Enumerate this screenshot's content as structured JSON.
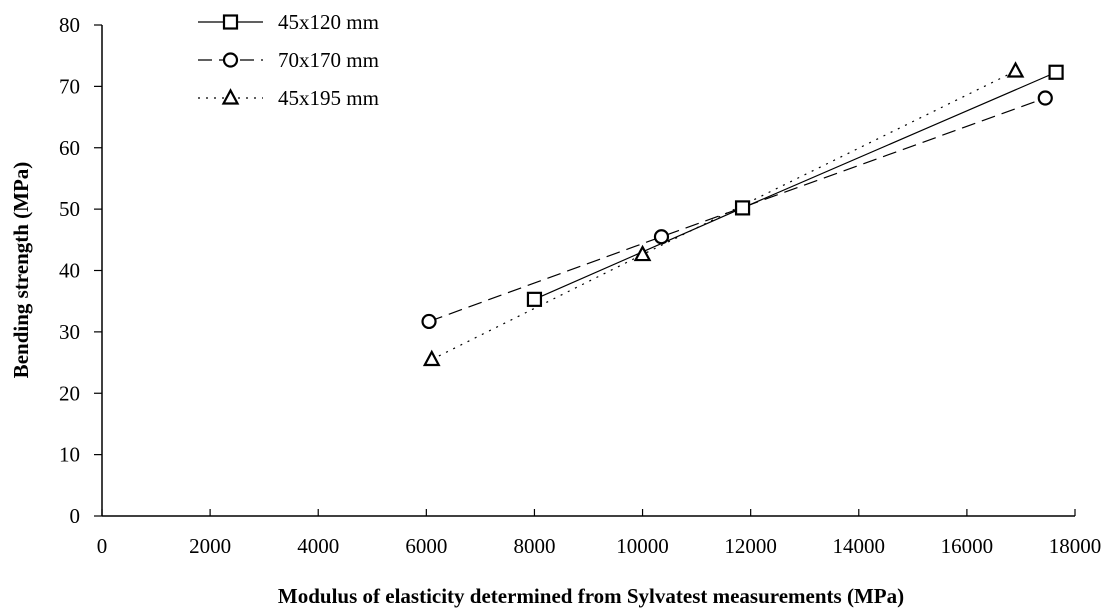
{
  "chart_data": {
    "type": "line",
    "title": "",
    "xlabel": "Modulus of elasticity determined from Sylvatest measurements (MPa)",
    "ylabel": "Bending strength (MPa)",
    "xlim": [
      0,
      18000
    ],
    "ylim": [
      0,
      80
    ],
    "x_ticks": [
      "0",
      "2000",
      "4000",
      "6000",
      "8000",
      "10000",
      "12000",
      "14000",
      "16000",
      "18000"
    ],
    "y_ticks": [
      "0",
      "10",
      "20",
      "30",
      "40",
      "50",
      "60",
      "70",
      "80"
    ],
    "grid": false,
    "legend_position": "top-left",
    "series": [
      {
        "name": "45x120 mm",
        "marker": "square",
        "line_style": "solid",
        "points": [
          {
            "x": 8000,
            "y": 35.3
          },
          {
            "x": 11850,
            "y": 50.2
          },
          {
            "x": 17650,
            "y": 72.3
          }
        ]
      },
      {
        "name": "70x170 mm",
        "marker": "circle",
        "line_style": "dashed",
        "points": [
          {
            "x": 6050,
            "y": 31.7
          },
          {
            "x": 10350,
            "y": 45.5
          },
          {
            "x": 17450,
            "y": 68.1
          }
        ]
      },
      {
        "name": "45x195 mm",
        "marker": "triangle",
        "line_style": "dotted",
        "points": [
          {
            "x": 6100,
            "y": 25.5
          },
          {
            "x": 10000,
            "y": 42.6
          },
          {
            "x": 16900,
            "y": 72.5
          }
        ]
      }
    ]
  }
}
